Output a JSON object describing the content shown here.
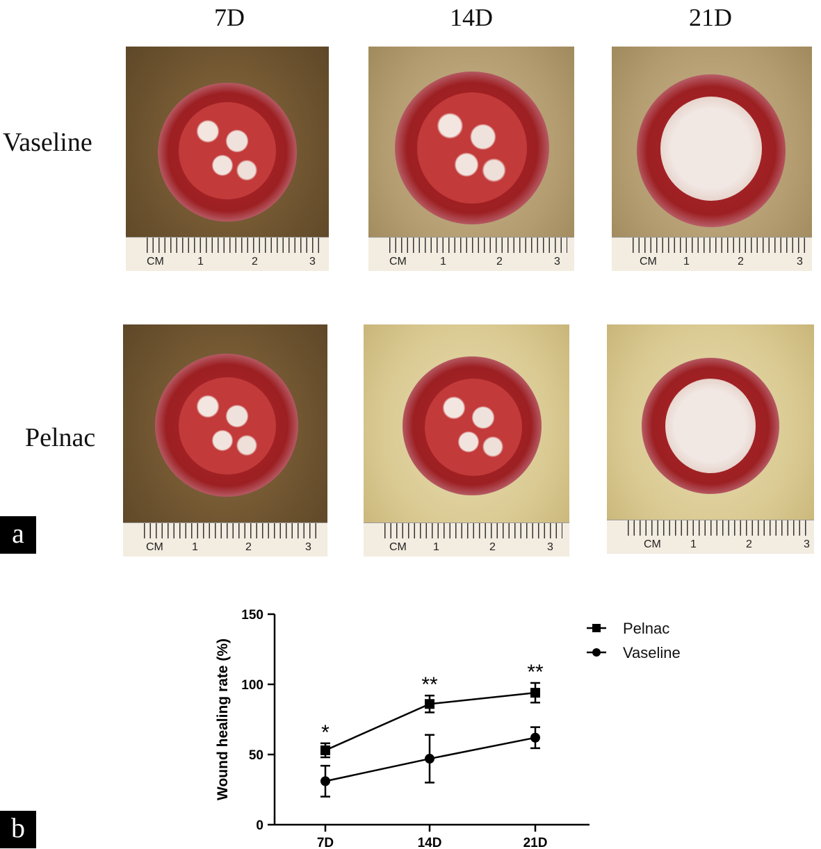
{
  "figure": {
    "column_headers": [
      "7D",
      "14D",
      "21D"
    ],
    "row_labels": [
      "Vaseline",
      "Pelnac"
    ],
    "panel_labels": {
      "a": "a",
      "b": "b"
    },
    "ruler": {
      "unit": "CM",
      "marks": [
        "1",
        "2",
        "3"
      ]
    }
  },
  "chart_data": {
    "type": "line",
    "categories": [
      "7D",
      "14D",
      "21D"
    ],
    "ylabel": "Wound healing rate (%)",
    "xlabel": "",
    "ylim": [
      0,
      150
    ],
    "yticks": [
      0,
      50,
      100,
      150
    ],
    "legend_position": "top-right",
    "series": [
      {
        "name": "Pelnac",
        "marker": "square",
        "values": [
          53,
          86,
          94
        ],
        "err": [
          5,
          6,
          7
        ],
        "significance": [
          "*",
          "**",
          "**"
        ]
      },
      {
        "name": "Vaseline",
        "marker": "circle",
        "values": [
          31,
          47,
          62
        ],
        "err": [
          11,
          17,
          7.5
        ]
      }
    ],
    "colors": {
      "line": "#000000"
    }
  }
}
